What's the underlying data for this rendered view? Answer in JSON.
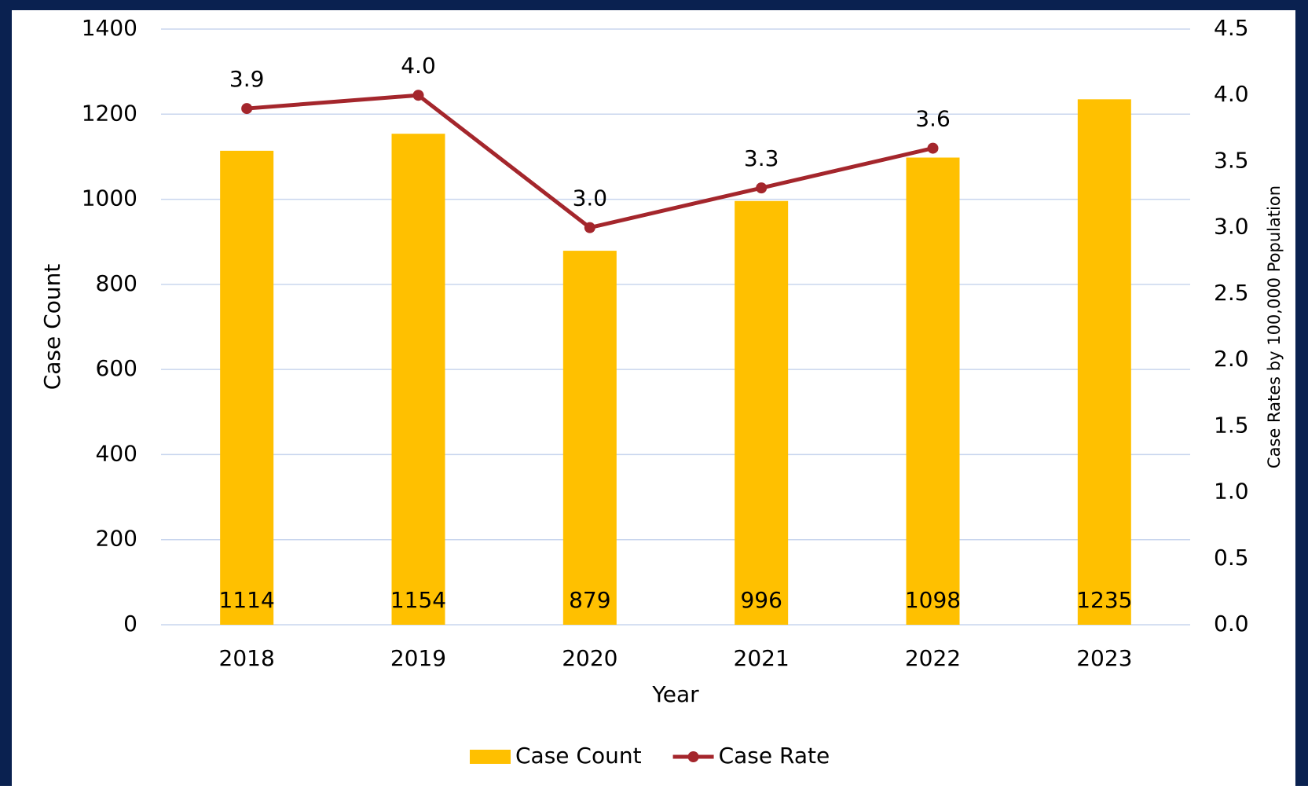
{
  "chart_data": {
    "type": "bar-line",
    "categories": [
      "2018",
      "2019",
      "2020",
      "2021",
      "2022",
      "2023"
    ],
    "xlabel": "Year",
    "ylabel": "Case Count",
    "y2label": "Case Rates by 100,000 Population",
    "ylim": [
      0,
      1400
    ],
    "yticks": [
      0,
      200,
      400,
      600,
      800,
      1000,
      1200,
      1400
    ],
    "y2lim": [
      0,
      4.5
    ],
    "y2ticks": [
      {
        "value": 0,
        "label": "0.0"
      },
      0.5,
      {
        "value": 1,
        "label": "1.0"
      },
      1.5,
      {
        "value": 2,
        "label": "2.0"
      },
      2.5,
      {
        "value": 3,
        "label": "3.0"
      },
      3.5,
      {
        "value": 4,
        "label": "4.0"
      },
      4.5
    ],
    "grid": true,
    "legend": "bottom",
    "series": [
      {
        "name": "Case Count",
        "type": "bar",
        "color": "#ffc000",
        "values": [
          1114,
          1154,
          879,
          996,
          1098,
          1235
        ]
      },
      {
        "name": "Case Rate",
        "type": "line",
        "axis": "y2",
        "color": "#a4262c",
        "values": [
          3.9,
          4.0,
          3.0,
          3.3,
          3.6,
          null
        ],
        "value_labels": [
          "3.9",
          "4.0",
          "3.0",
          "3.3",
          "3.6",
          null
        ]
      }
    ]
  }
}
